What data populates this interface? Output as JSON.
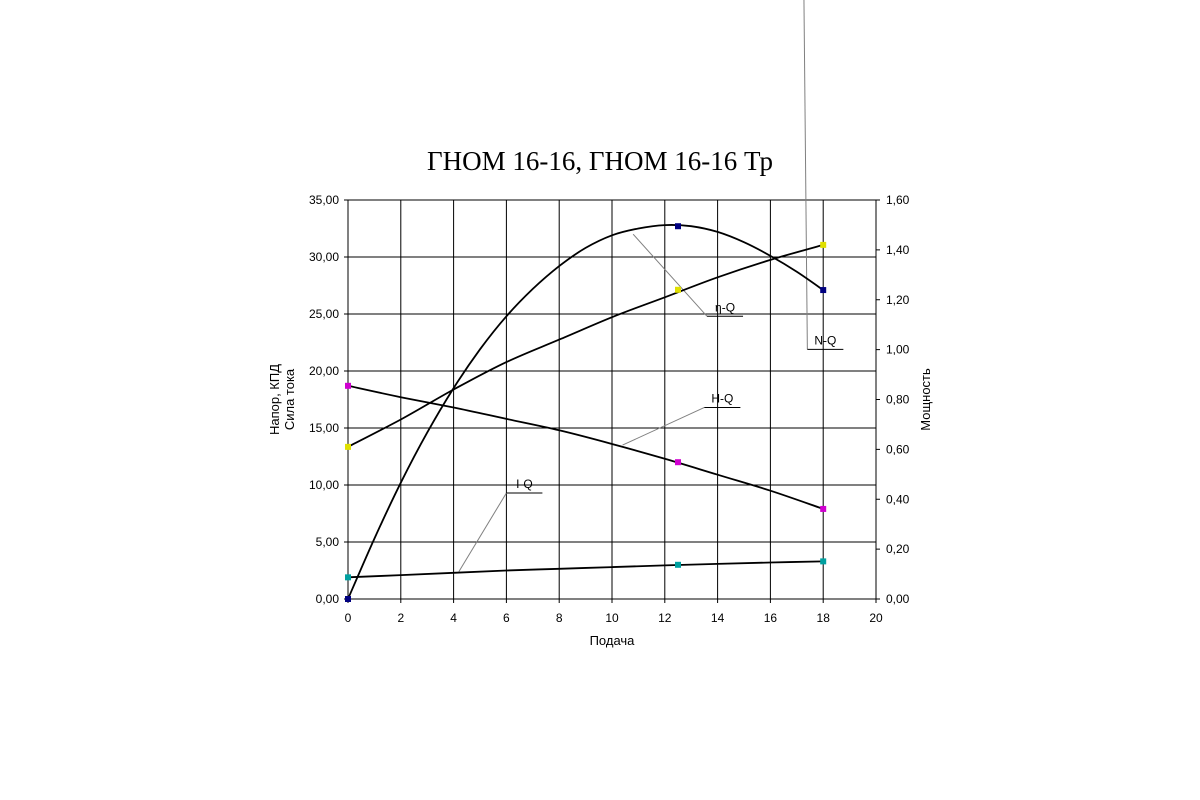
{
  "chart_data": {
    "type": "line",
    "title": "ГНОМ 16-16, ГНОМ 16-16 Тр",
    "xlabel": "Подача",
    "ylabel_left": [
      "Напор, КПД",
      "Сила тока"
    ],
    "ylabel_right": "Мощность",
    "xlim": [
      0,
      20
    ],
    "ylim_left": [
      0,
      35
    ],
    "ylim_right": [
      0,
      1.6
    ],
    "x_ticks": [
      "0",
      "2",
      "4",
      "6",
      "8",
      "10",
      "12",
      "14",
      "16",
      "18",
      "20"
    ],
    "y_left_ticks": [
      "0,00",
      "5,00",
      "10,00",
      "15,00",
      "20,00",
      "25,00",
      "30,00",
      "35,00"
    ],
    "y_right_ticks": [
      "0,00",
      "0,20",
      "0,40",
      "0,60",
      "0,80",
      "1,00",
      "1,20",
      "1,40",
      "1,60"
    ],
    "grid": true,
    "series": [
      {
        "name": "H-Q",
        "axis": "left",
        "marker_color": "#d000d0",
        "points": [
          [
            0,
            18.7
          ],
          [
            12.5,
            12.0
          ],
          [
            18,
            7.9
          ]
        ],
        "curve": [
          [
            0,
            18.7
          ],
          [
            2,
            17.7
          ],
          [
            4,
            16.8
          ],
          [
            6,
            15.8
          ],
          [
            8,
            14.8
          ],
          [
            10,
            13.6
          ],
          [
            12,
            12.3
          ],
          [
            14,
            10.9
          ],
          [
            16,
            9.5
          ],
          [
            18,
            7.9
          ]
        ]
      },
      {
        "name": "η-Q",
        "axis": "left",
        "marker_color": "#000080",
        "points": [
          [
            0,
            0
          ],
          [
            12.5,
            32.7
          ],
          [
            18,
            27.1
          ]
        ],
        "curve": [
          [
            0,
            0
          ],
          [
            1,
            5.3
          ],
          [
            2,
            10.2
          ],
          [
            3,
            14.6
          ],
          [
            4,
            18.5
          ],
          [
            5,
            21.9
          ],
          [
            6,
            24.8
          ],
          [
            7,
            27.2
          ],
          [
            8,
            29.2
          ],
          [
            9,
            30.8
          ],
          [
            10,
            31.9
          ],
          [
            11,
            32.5
          ],
          [
            12,
            32.8
          ],
          [
            13,
            32.7
          ],
          [
            14,
            32.2
          ],
          [
            15,
            31.3
          ],
          [
            16,
            30.1
          ],
          [
            17,
            28.7
          ],
          [
            18,
            27.1
          ]
        ]
      },
      {
        "name": "N-Q",
        "axis": "right",
        "marker_color": "#e0e000",
        "points": [
          [
            0,
            0.61
          ],
          [
            12.5,
            1.24
          ],
          [
            18,
            1.42
          ]
        ],
        "curve": [
          [
            0,
            0.61
          ],
          [
            2,
            0.72
          ],
          [
            4,
            0.84
          ],
          [
            6,
            0.95
          ],
          [
            8,
            1.04
          ],
          [
            10,
            1.13
          ],
          [
            12,
            1.21
          ],
          [
            14,
            1.29
          ],
          [
            16,
            1.36
          ],
          [
            18,
            1.42
          ]
        ]
      },
      {
        "name": "I-Q",
        "axis": "left",
        "marker_color": "#00a0a0",
        "points": [
          [
            0,
            1.9
          ],
          [
            12.5,
            3.0
          ],
          [
            18,
            3.3
          ]
        ],
        "curve": [
          [
            0,
            1.9
          ],
          [
            2,
            2.1
          ],
          [
            4,
            2.3
          ],
          [
            6,
            2.5
          ],
          [
            8,
            2.65
          ],
          [
            10,
            2.8
          ],
          [
            12,
            2.95
          ],
          [
            14,
            3.08
          ],
          [
            16,
            3.2
          ],
          [
            18,
            3.3
          ]
        ]
      }
    ],
    "annotations": [
      {
        "text": "η-Q",
        "target_series": "η-Q",
        "anchor": [
          10.8,
          32.0
        ],
        "label_pos": [
          13.6,
          24.8
        ]
      },
      {
        "text": "N-Q",
        "target_series": "N-Q",
        "anchor": [
          14.8,
          29.2
        ],
        "label_pos": [
          17.4,
          21.9
        ]
      },
      {
        "text": "H-Q",
        "target_series": "H-Q",
        "anchor": [
          10.4,
          13.5
        ],
        "label_pos": [
          13.5,
          16.8
        ]
      },
      {
        "text": "I-Q",
        "target_series": "I-Q",
        "anchor": [
          4.2,
          2.4
        ],
        "label_pos": [
          6.0,
          9.3
        ]
      }
    ]
  }
}
